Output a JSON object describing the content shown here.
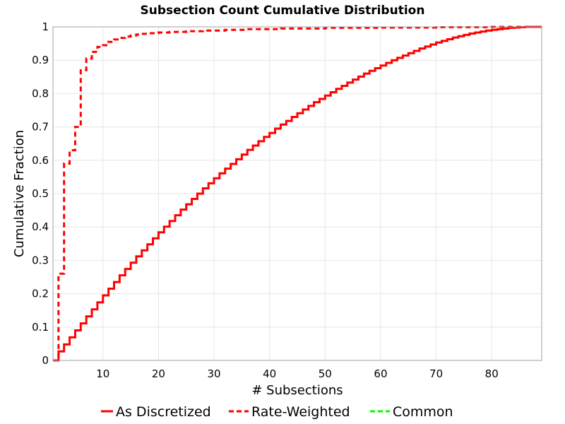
{
  "chart_data": {
    "type": "line",
    "title": "Subsection Count Cumulative Distribution",
    "xlabel": "# Subsections",
    "ylabel": "Cumulative Fraction",
    "xlim": [
      1,
      89
    ],
    "ylim": [
      0,
      1
    ],
    "x_ticks": [
      10,
      20,
      30,
      40,
      50,
      60,
      70,
      80
    ],
    "y_ticks": [
      0,
      0.1,
      0.2,
      0.3,
      0.4,
      0.5,
      0.6,
      0.7,
      0.8,
      0.9,
      1
    ],
    "y_tick_labels": [
      "0",
      "0.1",
      "0.2",
      "0.3",
      "0.4",
      "0.5",
      "0.6",
      "0.7",
      "0.8",
      "0.9",
      "1"
    ],
    "grid": true,
    "legend_position": "bottom",
    "series": [
      {
        "name": "As Discretized",
        "color": "#ff0000",
        "style": "solid",
        "step": true,
        "points": [
          [
            1,
            0
          ],
          [
            2,
            0.027
          ],
          [
            3,
            0.048
          ],
          [
            4,
            0.069
          ],
          [
            5,
            0.09
          ],
          [
            6,
            0.111
          ],
          [
            7,
            0.132
          ],
          [
            8,
            0.153
          ],
          [
            9,
            0.174
          ],
          [
            10,
            0.195
          ],
          [
            11,
            0.215
          ],
          [
            12,
            0.235
          ],
          [
            13,
            0.255
          ],
          [
            14,
            0.274
          ],
          [
            15,
            0.293
          ],
          [
            16,
            0.312
          ],
          [
            17,
            0.33
          ],
          [
            18,
            0.348
          ],
          [
            19,
            0.366
          ],
          [
            20,
            0.384
          ],
          [
            21,
            0.401
          ],
          [
            22,
            0.418
          ],
          [
            23,
            0.435
          ],
          [
            24,
            0.452
          ],
          [
            25,
            0.468
          ],
          [
            26,
            0.484
          ],
          [
            27,
            0.5
          ],
          [
            28,
            0.516
          ],
          [
            29,
            0.531
          ],
          [
            30,
            0.546
          ],
          [
            31,
            0.561
          ],
          [
            32,
            0.575
          ],
          [
            33,
            0.589
          ],
          [
            34,
            0.603
          ],
          [
            35,
            0.617
          ],
          [
            36,
            0.631
          ],
          [
            37,
            0.644
          ],
          [
            38,
            0.657
          ],
          [
            39,
            0.67
          ],
          [
            40,
            0.682
          ],
          [
            41,
            0.695
          ],
          [
            42,
            0.707
          ],
          [
            43,
            0.718
          ],
          [
            44,
            0.73
          ],
          [
            45,
            0.741
          ],
          [
            46,
            0.752
          ],
          [
            47,
            0.763
          ],
          [
            48,
            0.774
          ],
          [
            49,
            0.784
          ],
          [
            50,
            0.794
          ],
          [
            51,
            0.804
          ],
          [
            52,
            0.814
          ],
          [
            53,
            0.823
          ],
          [
            54,
            0.833
          ],
          [
            55,
            0.842
          ],
          [
            56,
            0.851
          ],
          [
            57,
            0.86
          ],
          [
            58,
            0.868
          ],
          [
            59,
            0.876
          ],
          [
            60,
            0.884
          ],
          [
            61,
            0.892
          ],
          [
            62,
            0.9
          ],
          [
            63,
            0.907
          ],
          [
            64,
            0.914
          ],
          [
            65,
            0.921
          ],
          [
            66,
            0.928
          ],
          [
            67,
            0.935
          ],
          [
            68,
            0.941
          ],
          [
            69,
            0.947
          ],
          [
            70,
            0.953
          ],
          [
            71,
            0.958
          ],
          [
            72,
            0.963
          ],
          [
            73,
            0.968
          ],
          [
            74,
            0.972
          ],
          [
            75,
            0.976
          ],
          [
            76,
            0.98
          ],
          [
            77,
            0.983
          ],
          [
            78,
            0.986
          ],
          [
            79,
            0.989
          ],
          [
            80,
            0.991
          ],
          [
            81,
            0.993
          ],
          [
            82,
            0.995
          ],
          [
            83,
            0.997
          ],
          [
            84,
            0.998
          ],
          [
            85,
            0.999
          ],
          [
            86,
            1.0
          ],
          [
            89,
            1.0
          ]
        ]
      },
      {
        "name": "Rate-Weighted",
        "color": "#ff0000",
        "style": "dashed",
        "step": true,
        "points": [
          [
            1,
            0
          ],
          [
            2,
            0.26
          ],
          [
            3,
            0.59
          ],
          [
            4,
            0.63
          ],
          [
            5,
            0.7
          ],
          [
            6,
            0.87
          ],
          [
            7,
            0.905
          ],
          [
            8,
            0.925
          ],
          [
            9,
            0.94
          ],
          [
            10,
            0.945
          ],
          [
            11,
            0.955
          ],
          [
            12,
            0.962
          ],
          [
            13,
            0.967
          ],
          [
            14,
            0.971
          ],
          [
            15,
            0.974
          ],
          [
            16,
            0.977
          ],
          [
            17,
            0.979
          ],
          [
            18,
            0.981
          ],
          [
            20,
            0.983
          ],
          [
            22,
            0.985
          ],
          [
            25,
            0.987
          ],
          [
            28,
            0.989
          ],
          [
            32,
            0.991
          ],
          [
            36,
            0.993
          ],
          [
            42,
            0.995
          ],
          [
            50,
            0.997
          ],
          [
            60,
            0.998
          ],
          [
            70,
            0.999
          ],
          [
            80,
            1.0
          ],
          [
            89,
            1.0
          ]
        ]
      },
      {
        "name": "Common",
        "color": "#00ff00",
        "style": "dashed",
        "step": true,
        "points": []
      }
    ]
  }
}
